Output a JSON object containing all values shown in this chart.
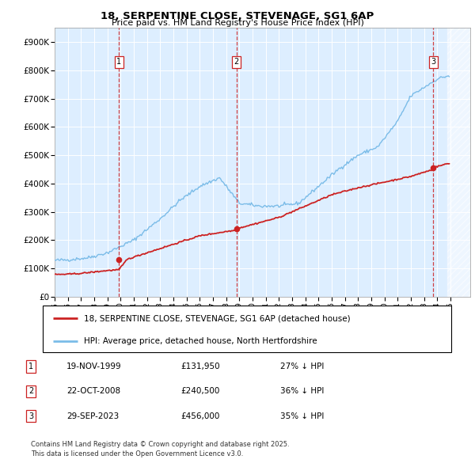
{
  "title1": "18, SERPENTINE CLOSE, STEVENAGE, SG1 6AP",
  "title2": "Price paid vs. HM Land Registry's House Price Index (HPI)",
  "ytick_labels": [
    "£0",
    "£100K",
    "£200K",
    "£300K",
    "£400K",
    "£500K",
    "£600K",
    "£700K",
    "£800K",
    "£900K"
  ],
  "yticks": [
    0,
    100000,
    200000,
    300000,
    400000,
    500000,
    600000,
    700000,
    800000,
    900000
  ],
  "hpi_color": "#7bbce8",
  "price_color": "#cc2222",
  "plot_bg": "#ddeeff",
  "transaction_prices": [
    131950,
    240500,
    456000
  ],
  "transaction_labels": [
    "1",
    "2",
    "3"
  ],
  "legend_line1": "18, SERPENTINE CLOSE, STEVENAGE, SG1 6AP (detached house)",
  "legend_line2": "HPI: Average price, detached house, North Hertfordshire",
  "footnote1": "Contains HM Land Registry data © Crown copyright and database right 2025.",
  "footnote2": "This data is licensed under the Open Government Licence v3.0.",
  "table_entries": [
    {
      "num": "1",
      "date": "19-NOV-1999",
      "price": "£131,950",
      "pct": "27% ↓ HPI"
    },
    {
      "num": "2",
      "date": "22-OCT-2008",
      "price": "£240,500",
      "pct": "36% ↓ HPI"
    },
    {
      "num": "3",
      "date": "29-SEP-2023",
      "price": "£456,000",
      "pct": "35% ↓ HPI"
    }
  ],
  "ylim": [
    0,
    950000
  ],
  "xlim": [
    1995.0,
    2026.5
  ],
  "hatch_start": 2024.75,
  "hatch_end": 2026.5
}
